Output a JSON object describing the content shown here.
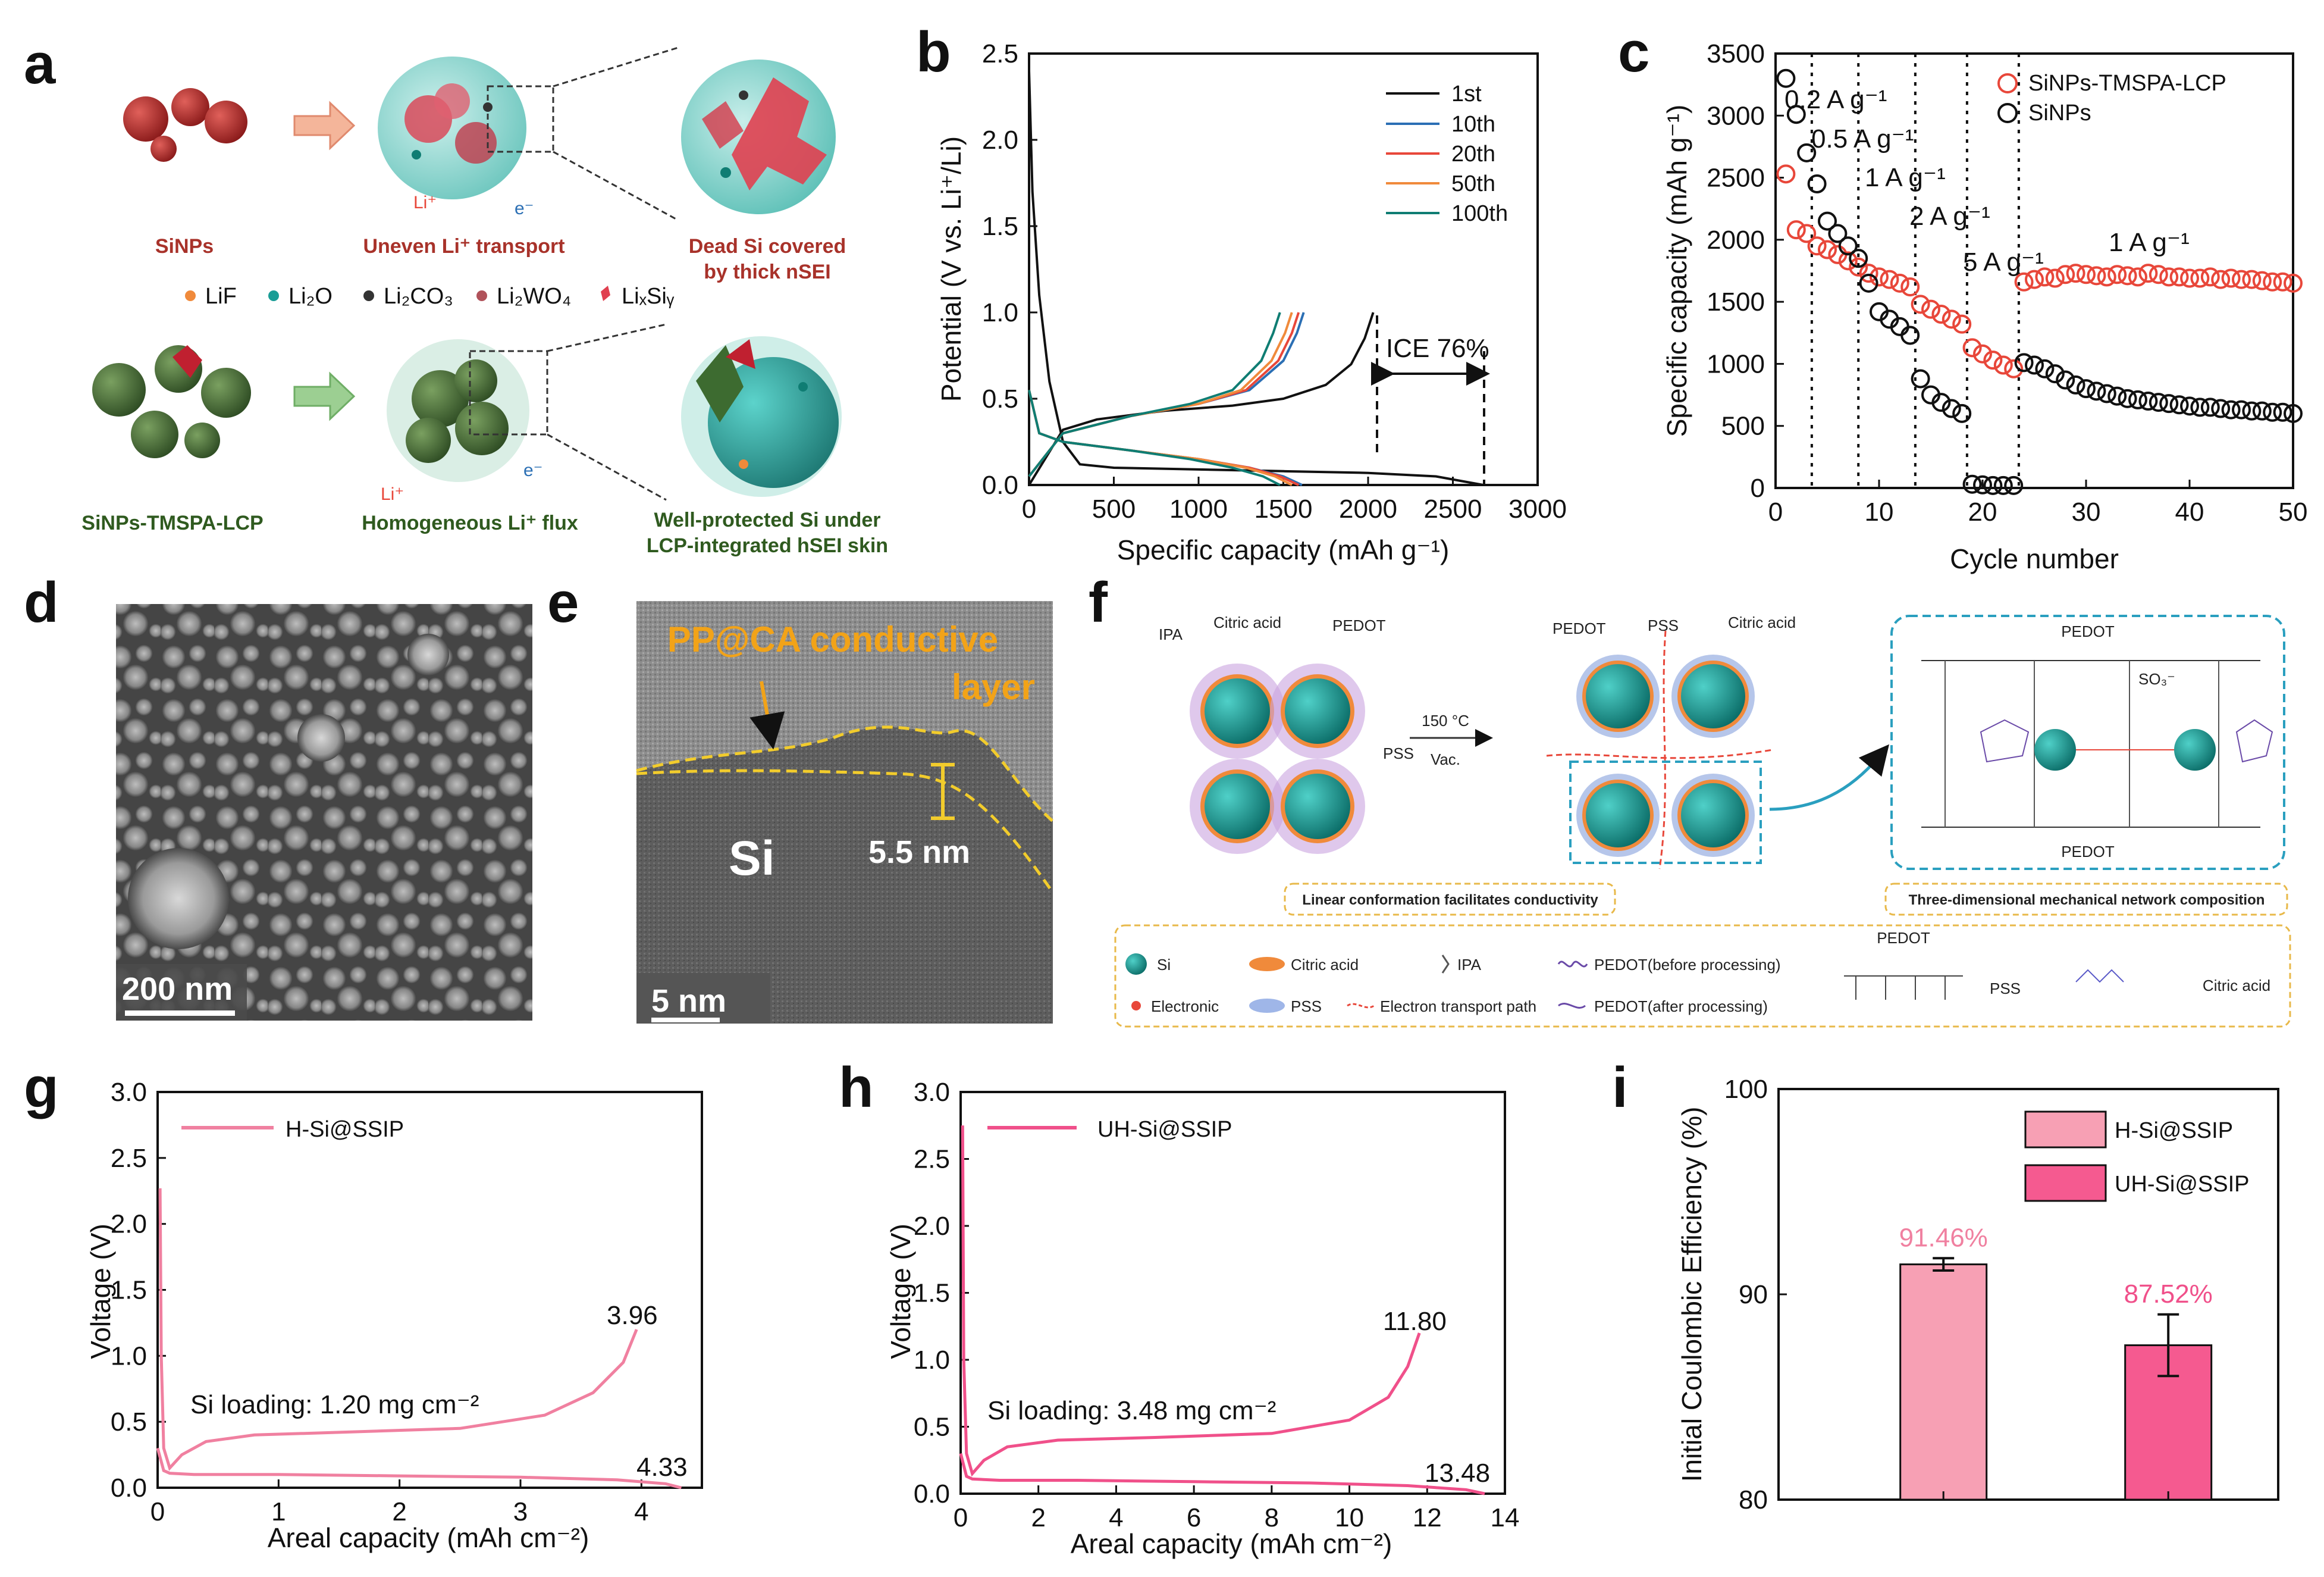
{
  "panel_labels": {
    "a": "a",
    "b": "b",
    "c": "c",
    "d": "d",
    "e": "e",
    "f": "f",
    "g": "g",
    "h": "h",
    "i": "i"
  },
  "colors": {
    "red": "#e8473a",
    "black": "#111111",
    "blue": "#2b6fb4",
    "orange": "#f08a3b",
    "teal": "#0f7d73",
    "pink": "#f080a0",
    "hotpink": "#f0508a",
    "barlight": "#f7a0b4",
    "barhot": "#f55a90",
    "sipart": "#1a9d96"
  },
  "panel_a": {
    "top_labels": [
      "SiNPs",
      "Uneven Li⁺ transport",
      "Dead Si covered",
      "by thick nSEI"
    ],
    "bottom_labels": [
      "SiNPs-TMSPA-LCP",
      "Homogeneous Li⁺ flux",
      "Well-protected Si under",
      "LCP-integrated hSEI skin"
    ],
    "legend": [
      "LiF",
      "Li₂O",
      "Li₂CO₃",
      "Li₂WO₄",
      "LiₓSiᵧ"
    ],
    "markers": {
      "li_top": "Li⁺",
      "e_top": "e⁻",
      "li_bot": "Li⁺",
      "e_bot": "e⁻"
    }
  },
  "panel_d": {
    "scale_bar": "200 nm"
  },
  "panel_e": {
    "layer_label_1": "PP@CA conductive",
    "layer_label_2": "layer",
    "si_label": "Si",
    "thickness": "5.5 nm",
    "scale_bar": "5 nm"
  },
  "panel_f": {
    "top_left": {
      "ipa": "IPA",
      "citric": "Citric acid",
      "pedot": "PEDOT",
      "pss": "PSS"
    },
    "arrow_top": "150 °C",
    "arrow_bottom": "Vac.",
    "top_mid": {
      "pedot": "PEDOT",
      "pss": "PSS",
      "citric": "Citric acid"
    },
    "caption_left": "Linear conformation facilitates conductivity",
    "caption_right": "Three-dimensional mechanical network composition",
    "struct_pedot_top": "PEDOT",
    "struct_pedot_bottom": "PEDOT",
    "struct_so3": "SO₃⁻",
    "legend": [
      "Si",
      "Citric acid",
      "IPA",
      "PEDOT(before processing)",
      "Electronic",
      "PSS",
      "Electron transport path",
      "PEDOT(after processing)"
    ],
    "legend_struct": {
      "pedot": "PEDOT",
      "pss": "PSS",
      "citric": "Citric acid"
    }
  },
  "chart_data": [
    {
      "panel": "b",
      "type": "line",
      "xlabel": "Specific capacity (mAh g⁻¹)",
      "ylabel": "Potential (V vs. Li⁺/Li)",
      "xlim": [
        0,
        3000
      ],
      "ylim": [
        0,
        2.5
      ],
      "xticks": [
        0,
        500,
        1000,
        1500,
        2000,
        2500,
        3000
      ],
      "yticks": [
        0.0,
        0.5,
        1.0,
        1.5,
        2.0,
        2.5
      ],
      "xtick_labels": [
        "0",
        "500",
        "1000",
        "1500",
        "2000",
        "2500",
        "3000"
      ],
      "ytick_labels": [
        "0.0",
        "0.5",
        "1.0",
        "1.5",
        "2.0",
        "2.5"
      ],
      "annotation": "ICE 76%",
      "series": [
        {
          "name": "1st",
          "color": "#111111",
          "charge_x": [
            0,
            200,
            400,
            800,
            1200,
            1500,
            1750,
            1900,
            1980,
            2030
          ],
          "charge_y": [
            0.0,
            0.32,
            0.38,
            0.43,
            0.46,
            0.5,
            0.58,
            0.7,
            0.85,
            1.0
          ],
          "discharge_x": [
            0,
            20,
            60,
            120,
            200,
            300,
            500,
            1000,
            1500,
            2000,
            2400,
            2680
          ],
          "discharge_y": [
            2.4,
            1.7,
            1.1,
            0.6,
            0.25,
            0.12,
            0.1,
            0.09,
            0.08,
            0.07,
            0.05,
            0.0
          ]
        },
        {
          "name": "10th",
          "color": "#2b6fb4",
          "charge_x": [
            0,
            200,
            600,
            1000,
            1300,
            1500,
            1580,
            1620
          ],
          "charge_y": [
            0.05,
            0.3,
            0.4,
            0.47,
            0.55,
            0.72,
            0.88,
            1.0
          ],
          "discharge_x": [
            0,
            60,
            200,
            600,
            1000,
            1300,
            1500,
            1610
          ],
          "discharge_y": [
            0.55,
            0.3,
            0.25,
            0.2,
            0.15,
            0.1,
            0.05,
            0.0
          ]
        },
        {
          "name": "20th",
          "color": "#e8473a",
          "charge_x": [
            0,
            200,
            600,
            1000,
            1280,
            1470,
            1550,
            1590
          ],
          "charge_y": [
            0.05,
            0.3,
            0.4,
            0.47,
            0.55,
            0.72,
            0.88,
            1.0
          ],
          "discharge_x": [
            0,
            60,
            200,
            600,
            1000,
            1300,
            1480,
            1590
          ],
          "discharge_y": [
            0.55,
            0.3,
            0.25,
            0.2,
            0.15,
            0.1,
            0.05,
            0.0
          ]
        },
        {
          "name": "50th",
          "color": "#f08a3b",
          "charge_x": [
            0,
            200,
            600,
            1000,
            1250,
            1430,
            1510,
            1550
          ],
          "charge_y": [
            0.05,
            0.3,
            0.4,
            0.47,
            0.55,
            0.72,
            0.88,
            1.0
          ],
          "discharge_x": [
            0,
            60,
            200,
            600,
            1000,
            1280,
            1450,
            1550
          ],
          "discharge_y": [
            0.55,
            0.3,
            0.25,
            0.2,
            0.15,
            0.1,
            0.05,
            0.0
          ]
        },
        {
          "name": "100th",
          "color": "#0f7d73",
          "charge_x": [
            0,
            200,
            600,
            950,
            1200,
            1370,
            1440,
            1480
          ],
          "charge_y": [
            0.05,
            0.3,
            0.4,
            0.47,
            0.55,
            0.72,
            0.88,
            1.0
          ],
          "discharge_x": [
            0,
            60,
            200,
            600,
            950,
            1200,
            1380,
            1480
          ],
          "discharge_y": [
            0.55,
            0.3,
            0.25,
            0.2,
            0.15,
            0.1,
            0.05,
            0.0
          ]
        }
      ]
    },
    {
      "panel": "c",
      "type": "scatter",
      "xlabel": "Cycle number",
      "ylabel": "Specific capacity (mAh g⁻¹)",
      "xlim": [
        0,
        50
      ],
      "ylim": [
        0,
        3500
      ],
      "xticks": [
        0,
        10,
        20,
        30,
        40,
        50
      ],
      "yticks": [
        0,
        500,
        1000,
        1500,
        2000,
        2500,
        3000,
        3500
      ],
      "xtick_labels": [
        "0",
        "10",
        "20",
        "30",
        "40",
        "50"
      ],
      "ytick_labels": [
        "0",
        "500",
        "1000",
        "1500",
        "2000",
        "2500",
        "3000",
        "3500"
      ],
      "dividers": [
        3.5,
        8,
        13.5,
        18.5,
        23.5
      ],
      "rate_labels": [
        "0.2 A g⁻¹",
        "0.5 A g⁻¹",
        "1 A g⁻¹",
        "2 A g⁻¹",
        "5 A g⁻¹",
        "1 A g⁻¹"
      ],
      "series": [
        {
          "name": "SiNPs-TMSPA-LCP",
          "color": "#e8473a",
          "x": [
            1,
            2,
            3,
            4,
            5,
            6,
            7,
            8,
            9,
            10,
            11,
            12,
            13,
            14,
            15,
            16,
            17,
            18,
            19,
            20,
            21,
            22,
            23,
            24,
            25,
            26,
            27,
            28,
            29,
            30,
            31,
            32,
            33,
            34,
            35,
            36,
            37,
            38,
            39,
            40,
            41,
            42,
            43,
            44,
            45,
            46,
            47,
            48,
            49,
            50
          ],
          "y": [
            2530,
            2080,
            2050,
            1950,
            1920,
            1880,
            1830,
            1780,
            1730,
            1700,
            1680,
            1650,
            1620,
            1480,
            1440,
            1400,
            1360,
            1320,
            1130,
            1080,
            1030,
            990,
            960,
            1660,
            1680,
            1700,
            1690,
            1720,
            1730,
            1720,
            1710,
            1700,
            1720,
            1710,
            1700,
            1730,
            1720,
            1700,
            1700,
            1690,
            1690,
            1700,
            1680,
            1690,
            1680,
            1680,
            1670,
            1660,
            1660,
            1650
          ]
        },
        {
          "name": "SiNPs",
          "color": "#111111",
          "x": [
            1,
            2,
            3,
            4,
            5,
            6,
            7,
            8,
            9,
            10,
            11,
            12,
            13,
            14,
            15,
            16,
            17,
            18,
            19,
            20,
            21,
            22,
            23,
            24,
            25,
            26,
            27,
            28,
            29,
            30,
            31,
            32,
            33,
            34,
            35,
            36,
            37,
            38,
            39,
            40,
            41,
            42,
            43,
            44,
            45,
            46,
            47,
            48,
            49,
            50
          ],
          "y": [
            3300,
            3010,
            2700,
            2450,
            2150,
            2050,
            1950,
            1850,
            1650,
            1420,
            1360,
            1300,
            1230,
            880,
            750,
            690,
            640,
            600,
            30,
            25,
            20,
            20,
            20,
            1010,
            990,
            960,
            920,
            870,
            830,
            800,
            780,
            760,
            740,
            720,
            710,
            700,
            690,
            680,
            670,
            660,
            650,
            650,
            640,
            630,
            630,
            620,
            620,
            610,
            610,
            600
          ]
        }
      ]
    },
    {
      "panel": "g",
      "type": "line",
      "xlabel": "Areal capacity (mAh cm⁻²)",
      "ylabel": "Voltage (V)",
      "xlim": [
        0,
        4.5
      ],
      "ylim": [
        0,
        3.0
      ],
      "xticks": [
        0,
        1,
        2,
        3,
        4
      ],
      "yticks": [
        0.0,
        0.5,
        1.0,
        1.5,
        2.0,
        2.5,
        3.0
      ],
      "xtick_labels": [
        "0",
        "1",
        "2",
        "3",
        "4"
      ],
      "ytick_labels": [
        "0.0",
        "0.5",
        "1.0",
        "1.5",
        "2.0",
        "2.5",
        "3.0"
      ],
      "loading_label": "Si loading: 1.20 mg cm⁻²",
      "charge_end_label": "3.96",
      "discharge_end_label": "4.33",
      "series": [
        {
          "name": "H-Si@SSIP",
          "color": "#f080a0",
          "x": [
            0.02,
            0.03,
            0.05,
            0.1,
            0.2,
            0.4,
            0.8,
            1.5,
            2.5,
            3.2,
            3.6,
            3.85,
            3.96
          ],
          "y": [
            2.27,
            1.0,
            0.3,
            0.15,
            0.25,
            0.35,
            0.4,
            0.42,
            0.45,
            0.55,
            0.72,
            0.95,
            1.2
          ]
        },
        {
          "name": "H-Si@SSIP-discharge",
          "color": "#f080a0",
          "x": [
            0.0,
            0.05,
            0.1,
            0.3,
            1.0,
            2.0,
            3.0,
            3.8,
            4.2,
            4.33
          ],
          "y": [
            0.3,
            0.13,
            0.11,
            0.1,
            0.1,
            0.09,
            0.08,
            0.06,
            0.03,
            0.0
          ]
        }
      ]
    },
    {
      "panel": "h",
      "type": "line",
      "xlabel": "Areal capacity (mAh cm⁻²)",
      "ylabel": "Voltage (V)",
      "xlim": [
        0,
        14
      ],
      "ylim": [
        0,
        3.0
      ],
      "xticks": [
        0,
        2,
        4,
        6,
        8,
        10,
        12,
        14
      ],
      "yticks": [
        0.0,
        0.5,
        1.0,
        1.5,
        2.0,
        2.5,
        3.0
      ],
      "xtick_labels": [
        "0",
        "2",
        "4",
        "6",
        "8",
        "10",
        "12",
        "14"
      ],
      "ytick_labels": [
        "0.0",
        "0.5",
        "1.0",
        "1.5",
        "2.0",
        "2.5",
        "3.0"
      ],
      "loading_label": "Si loading: 3.48 mg cm⁻²",
      "charge_end_label": "11.80",
      "discharge_end_label": "13.48",
      "series": [
        {
          "name": "UH-Si@SSIP",
          "color": "#f0508a",
          "x": [
            0.05,
            0.08,
            0.15,
            0.3,
            0.6,
            1.2,
            2.5,
            5,
            8,
            10,
            11,
            11.5,
            11.8
          ],
          "y": [
            2.75,
            1.0,
            0.3,
            0.15,
            0.25,
            0.35,
            0.4,
            0.42,
            0.45,
            0.55,
            0.72,
            0.95,
            1.2
          ]
        },
        {
          "name": "UH-Si@SSIP-discharge",
          "color": "#f0508a",
          "x": [
            0.0,
            0.15,
            0.3,
            1.0,
            3.0,
            6.0,
            9.0,
            11.5,
            13.0,
            13.48
          ],
          "y": [
            0.3,
            0.13,
            0.11,
            0.1,
            0.1,
            0.09,
            0.08,
            0.06,
            0.03,
            0.0
          ]
        }
      ]
    },
    {
      "panel": "i",
      "type": "bar",
      "ylabel": "Initial Coulombic Efficiency (%)",
      "ylim": [
        80,
        100
      ],
      "yticks": [
        80,
        90,
        100
      ],
      "ytick_labels": [
        "80",
        "90",
        "100"
      ],
      "categories": [
        "H-Si@SSIP",
        "UH-Si@SSIP"
      ],
      "values": [
        91.46,
        87.52
      ],
      "errors": [
        0.3,
        1.5
      ],
      "value_labels": [
        "91.46%",
        "87.52%"
      ],
      "colors": [
        "#f7a0b4",
        "#f55a90"
      ]
    }
  ]
}
